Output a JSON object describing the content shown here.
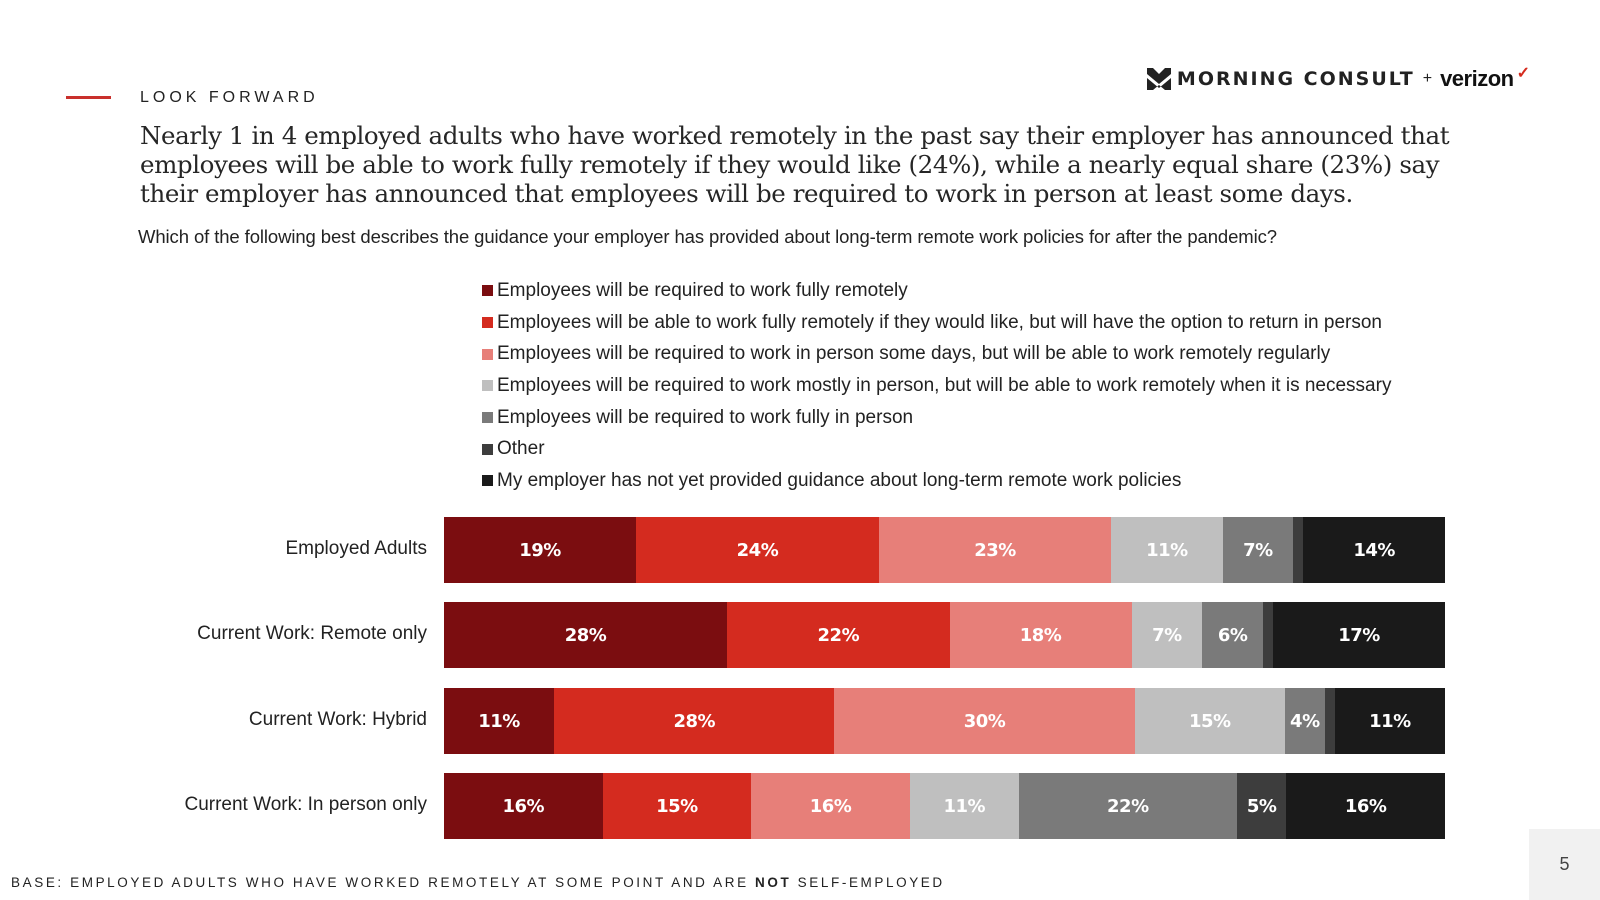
{
  "header": {
    "section_label": "LOOK FORWARD",
    "logo_brand_1": "MORNING CONSULT",
    "logo_plus": "+",
    "logo_brand_2": "verizon",
    "logo_check": "✓",
    "accent_color": "#c9302c"
  },
  "headline": "Nearly 1 in 4 employed adults who have worked remotely in the past say their employer has announced that employees will be able to work fully remotely if they would like (24%), while a nearly equal share (23%) say their employer has announced that employees will be required to work in person at least some days.",
  "question": "Which of the following best describes the guidance your employer has provided about long-term remote work policies for after the pandemic?",
  "footer": {
    "base_prefix": "BASE: EMPLOYED ADULTS WHO HAVE WORKED REMOTELY AT SOME POINT AND ARE ",
    "base_bold": "NOT",
    "base_suffix": " SELF-EMPLOYED",
    "page_number": "5"
  },
  "chart_data": {
    "type": "bar",
    "orientation": "horizontal",
    "stacked": true,
    "normalized": true,
    "title": "Which of the following best describes the guidance your employer has provided about long-term remote work policies for after the pandemic?",
    "xlabel": "",
    "ylabel": "",
    "xlim": [
      0,
      100
    ],
    "grid": false,
    "legend_position": "top",
    "categories": [
      "Employed Adults",
      "Current Work: Remote only",
      "Current Work: Hybrid",
      "Current Work: In person only"
    ],
    "series": [
      {
        "name": "Employees will be required to work fully remotely",
        "color": "#7b0d10",
        "values": [
          19,
          28,
          11,
          16
        ],
        "labels": [
          "19%",
          "28%",
          "11%",
          "16%"
        ]
      },
      {
        "name": "Employees will be able to work fully remotely if they would like, but will have the option to return in person",
        "color": "#d42b1f",
        "values": [
          24,
          22,
          28,
          15
        ],
        "labels": [
          "24%",
          "22%",
          "28%",
          "15%"
        ]
      },
      {
        "name": "Employees will be required to work in person some days, but will be able to work remotely regularly",
        "color": "#e77f79",
        "values": [
          23,
          18,
          30,
          16
        ],
        "labels": [
          "23%",
          "18%",
          "30%",
          "16%"
        ]
      },
      {
        "name": "Employees will be required to work mostly in person, but will be able to work remotely when it is necessary",
        "color": "#bfbfbf",
        "values": [
          11,
          7,
          15,
          11
        ],
        "labels": [
          "11%",
          "7%",
          "15%",
          "11%"
        ]
      },
      {
        "name": "Employees will be required to work fully in person",
        "color": "#7a7a7a",
        "values": [
          7,
          6,
          4,
          22
        ],
        "labels": [
          "7%",
          "6%",
          "4%",
          "22%"
        ]
      },
      {
        "name": "Other",
        "color": "#3d3d3d",
        "values": [
          1,
          1,
          1,
          5
        ],
        "labels": [
          "",
          "",
          "",
          "5%"
        ]
      },
      {
        "name": "My employer has not yet provided guidance about long-term remote work policies",
        "color": "#1a1a1a",
        "values": [
          14,
          17,
          11,
          16
        ],
        "labels": [
          "14%",
          "17%",
          "11%",
          "16%"
        ]
      }
    ]
  }
}
